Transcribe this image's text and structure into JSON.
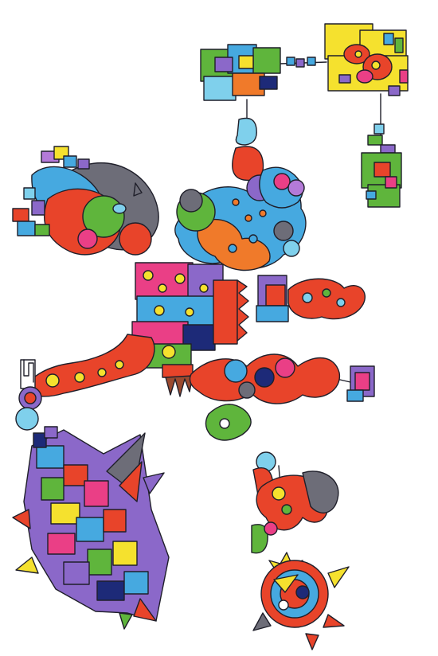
{
  "artwork": {
    "style": "hand-drawn marker doodle",
    "background": "#ffffff",
    "palette": {
      "red": "#e8442a",
      "orange": "#f07a2a",
      "yellow": "#f5e12e",
      "green": "#5fb53c",
      "blue": "#46a9e0",
      "lightblue": "#7fd0ec",
      "pink": "#ea3f86",
      "purple": "#8b68c9",
      "violet": "#b47ad8",
      "gray": "#6d6d78",
      "navy": "#1d2a78",
      "brown": "#9b4a2f"
    }
  }
}
